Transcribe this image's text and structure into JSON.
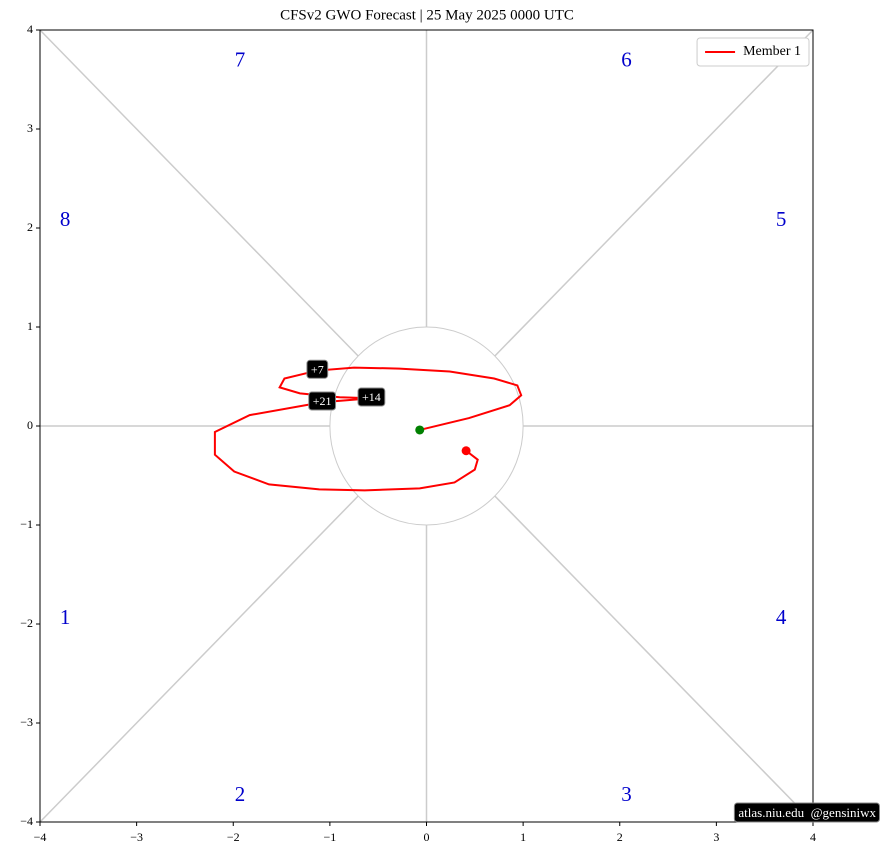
{
  "chart_data": {
    "type": "phase",
    "title": "CFSv2 GWO Forecast   |   25  May  2025 0000 UTC",
    "credit": "atlas.niu.edu  @gensiniwx",
    "xlim": [
      -4,
      4
    ],
    "ylim": [
      -4,
      4
    ],
    "xticks": [
      {
        "value": -4,
        "label": "−4"
      },
      {
        "value": -3,
        "label": "−3"
      },
      {
        "value": -2,
        "label": "−2"
      },
      {
        "value": -1,
        "label": "−1"
      },
      0,
      1,
      2,
      3,
      4
    ],
    "yticks": [
      {
        "value": -4,
        "label": "−4"
      },
      {
        "value": -3,
        "label": "−3"
      },
      {
        "value": -2,
        "label": "−2"
      },
      {
        "value": -1,
        "label": "−1"
      },
      0,
      1,
      2,
      3,
      4
    ],
    "legend": "upper right",
    "start_color": "#008000",
    "series": [
      {
        "name": "Member 1",
        "color": "#ff0000",
        "x": [
          -0.07,
          0.44,
          0.86,
          0.98,
          0.94,
          0.7,
          0.24,
          -0.28,
          -0.75,
          -1.13,
          -1.47,
          -1.52,
          -1.31,
          -0.9,
          -0.57,
          -1.08,
          -1.83,
          -2.19,
          -2.19,
          -1.99,
          -1.63,
          -1.11,
          -0.64,
          -0.07,
          0.29,
          0.5,
          0.53,
          0.41
        ],
        "y": [
          -0.04,
          0.08,
          0.21,
          0.31,
          0.41,
          0.48,
          0.55,
          0.58,
          0.59,
          0.56,
          0.48,
          0.39,
          0.33,
          0.29,
          0.28,
          0.24,
          0.11,
          -0.06,
          -0.29,
          -0.46,
          -0.59,
          -0.64,
          -0.65,
          -0.63,
          -0.57,
          -0.44,
          -0.34,
          -0.25
        ]
      }
    ],
    "annotations": [
      {
        "text": "+7",
        "x": -1.13,
        "y": 0.56
      },
      {
        "text": "+14",
        "x": -0.57,
        "y": 0.28
      },
      {
        "text": "+21",
        "x": -1.08,
        "y": 0.24
      }
    ],
    "phase_labels": [
      {
        "text": "1",
        "x": -3.74,
        "y": -1.95
      },
      {
        "text": "2",
        "x": -1.93,
        "y": -3.74
      },
      {
        "text": "3",
        "x": 2.07,
        "y": -3.74
      },
      {
        "text": "4",
        "x": 3.67,
        "y": -1.95
      },
      {
        "text": "5",
        "x": 3.67,
        "y": 2.07
      },
      {
        "text": "6",
        "x": 2.07,
        "y": 3.68
      },
      {
        "text": "7",
        "x": -1.93,
        "y": 3.68
      },
      {
        "text": "8",
        "x": -3.74,
        "y": 2.07
      }
    ]
  }
}
